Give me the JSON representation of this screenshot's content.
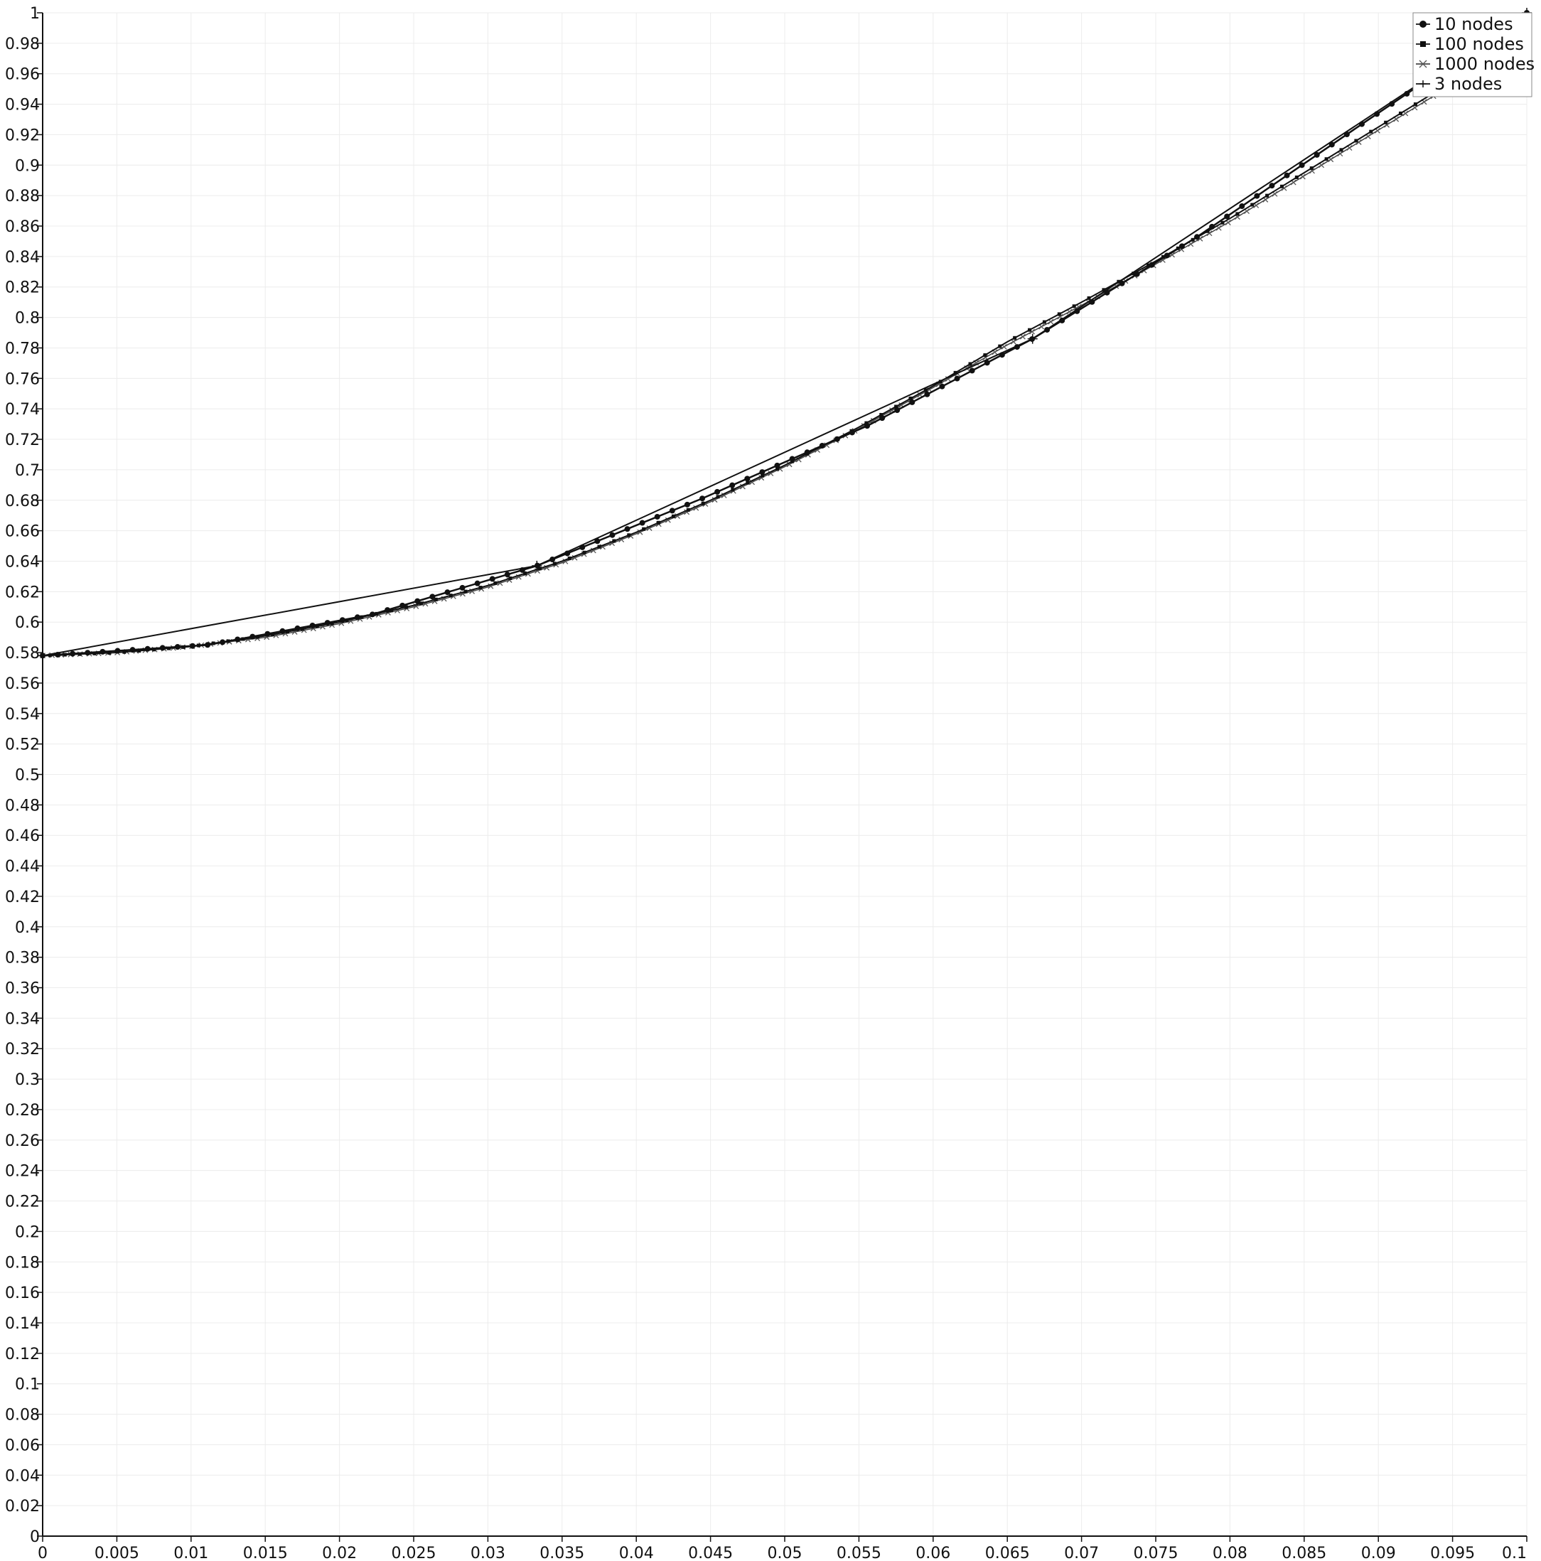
{
  "chart_data": {
    "type": "line",
    "title": "",
    "xlabel": "",
    "ylabel": "",
    "xlim": [
      0,
      0.1
    ],
    "ylim": [
      0,
      1
    ],
    "x_ticks": [
      "0",
      "0.005",
      "0.01",
      "0.015",
      "0.02",
      "0.025",
      "0.03",
      "0.035",
      "0.04",
      "0.045",
      "0.05",
      "0.055",
      "0.06",
      "0.065",
      "0.07",
      "0.075",
      "0.08",
      "0.085",
      "0.09",
      "0.095",
      "0.1"
    ],
    "y_ticks": [
      "0",
      "0.02",
      "0.04",
      "0.06",
      "0.08",
      "0.1",
      "0.12",
      "0.14",
      "0.16",
      "0.18",
      "0.2",
      "0.22",
      "0.24",
      "0.26",
      "0.28",
      "0.3",
      "0.32",
      "0.34",
      "0.36",
      "0.38",
      "0.4",
      "0.42",
      "0.44",
      "0.46",
      "0.48",
      "0.5",
      "0.52",
      "0.54",
      "0.56",
      "0.58",
      "0.6",
      "0.62",
      "0.64",
      "0.66",
      "0.68",
      "0.7",
      "0.72",
      "0.74",
      "0.76",
      "0.78",
      "0.8",
      "0.82",
      "0.84",
      "0.86",
      "0.88",
      "0.9",
      "0.92",
      "0.94",
      "0.96",
      "0.98",
      "1"
    ],
    "grid": true,
    "legend_position": "top-right",
    "series": [
      {
        "name": "10 nodes",
        "marker": "circle",
        "x": [
          0,
          0.0111,
          0.0222,
          0.0333,
          0.0444,
          0.0556,
          0.0667,
          0.0778,
          0.0889,
          0.1
        ],
        "y": [
          0.578,
          0.585,
          0.605,
          0.637,
          0.681,
          0.729,
          0.786,
          0.853,
          0.927,
          1.0
        ]
      },
      {
        "name": "100 nodes",
        "marker": "square",
        "x": [
          0,
          0.005,
          0.01,
          0.015,
          0.02,
          0.025,
          0.03,
          0.035,
          0.04,
          0.045,
          0.05,
          0.055,
          0.06,
          0.065,
          0.07,
          0.075,
          0.08,
          0.085,
          0.09,
          0.095,
          0.1
        ],
        "y": [
          0.578,
          0.58,
          0.584,
          0.591,
          0.6,
          0.611,
          0.624,
          0.64,
          0.659,
          0.68,
          0.703,
          0.728,
          0.755,
          0.784,
          0.81,
          0.837,
          0.865,
          0.895,
          0.925,
          0.955,
          0.985
        ]
      },
      {
        "name": "1000 nodes",
        "marker": "x",
        "x": [
          0,
          0.005,
          0.01,
          0.015,
          0.02,
          0.025,
          0.03,
          0.035,
          0.04,
          0.045,
          0.05,
          0.055,
          0.06,
          0.065,
          0.07,
          0.075,
          0.08,
          0.085,
          0.09,
          0.095,
          0.1
        ],
        "y": [
          0.578,
          0.58,
          0.584,
          0.59,
          0.599,
          0.61,
          0.623,
          0.639,
          0.658,
          0.679,
          0.702,
          0.727,
          0.754,
          0.782,
          0.808,
          0.835,
          0.863,
          0.893,
          0.923,
          0.953,
          0.983
        ]
      },
      {
        "name": "3 nodes",
        "marker": "plus",
        "x": [
          0,
          0.0333,
          0.0667,
          0.1
        ],
        "y": [
          0.578,
          0.637,
          0.786,
          1.0
        ]
      }
    ]
  }
}
